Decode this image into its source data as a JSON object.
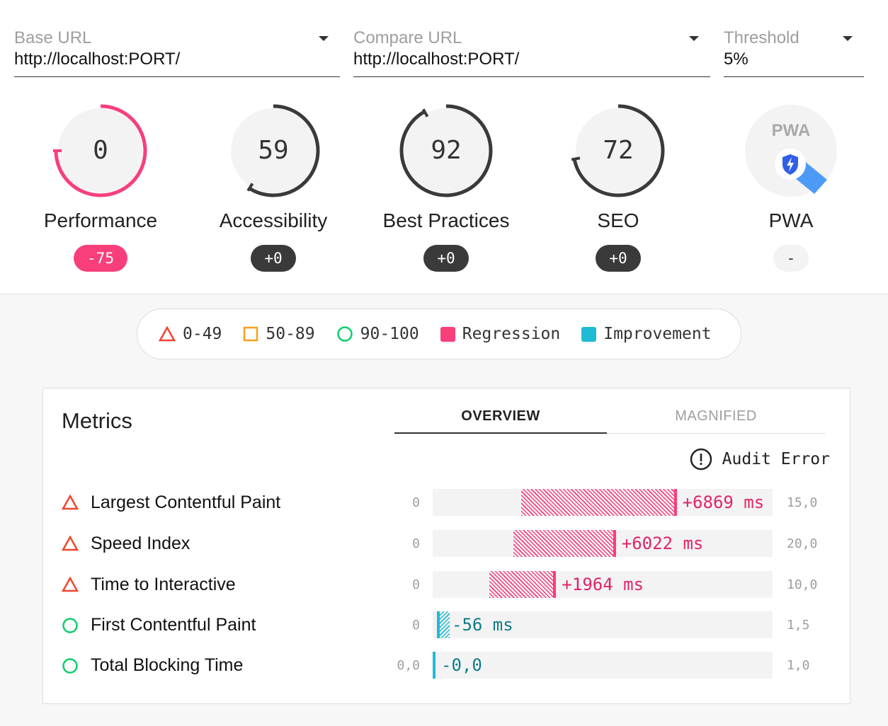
{
  "selectors": [
    {
      "label": "Base URL",
      "value": "http://localhost:PORT/"
    },
    {
      "label": "Compare URL",
      "value": "http://localhost:PORT/"
    },
    {
      "label": "Threshold",
      "value": "5%"
    }
  ],
  "categories": [
    {
      "name": "Performance",
      "score": "0",
      "base_score": 75,
      "compare_score": 0,
      "delta": "-75",
      "status": "regression"
    },
    {
      "name": "Accessibility",
      "score": "59",
      "base_score": 59,
      "compare_score": 59,
      "delta": "+0",
      "status": "neutral"
    },
    {
      "name": "Best Practices",
      "score": "92",
      "base_score": 92,
      "compare_score": 92,
      "delta": "+0",
      "status": "neutral"
    },
    {
      "name": "SEO",
      "score": "72",
      "base_score": 72,
      "compare_score": 72,
      "delta": "+0",
      "status": "neutral"
    },
    {
      "name": "PWA",
      "score": "PWA",
      "delta": "-",
      "status": "none"
    }
  ],
  "legend": {
    "fail": "0-49",
    "average": "50-89",
    "pass": "90-100",
    "regression": "Regression",
    "improvement": "Improvement"
  },
  "colors": {
    "regression": "#f83f7a",
    "improvement": "#1fbad6",
    "fail": "#f4452f",
    "average": "#fa9f1b",
    "pass": "#0cce6b"
  },
  "metrics": {
    "title": "Metrics",
    "tabs": {
      "overview": "OVERVIEW",
      "magnified": "MAGNIFIED"
    },
    "audit_error": "Audit Error",
    "rows": [
      {
        "name": "Largest Contentful Paint",
        "rating": "fail",
        "min": "0",
        "max": "15,0",
        "scale_max": 15000,
        "base": 3900,
        "compare": 10769,
        "delta": "+6869 ms",
        "kind": "reg"
      },
      {
        "name": "Speed Index",
        "rating": "fail",
        "min": "0",
        "max": "20,0",
        "scale_max": 20000,
        "base": 4760,
        "compare": 10782,
        "delta": "+6022 ms",
        "kind": "reg"
      },
      {
        "name": "Time to Interactive",
        "rating": "fail",
        "min": "0",
        "max": "10,0",
        "scale_max": 10000,
        "base": 1670,
        "compare": 3634,
        "delta": "+1964 ms",
        "kind": "reg"
      },
      {
        "name": "First Contentful Paint",
        "rating": "pass",
        "min": "0",
        "max": "1,5",
        "scale_max": 1500,
        "base": 75,
        "compare": 19,
        "delta": "-56 ms",
        "kind": "imp"
      },
      {
        "name": "Total Blocking Time",
        "rating": "pass",
        "min": "0,0",
        "max": "1,0",
        "scale_max": 1,
        "base": 0,
        "compare": 0,
        "delta": "-0,0",
        "kind": "imp"
      }
    ]
  }
}
